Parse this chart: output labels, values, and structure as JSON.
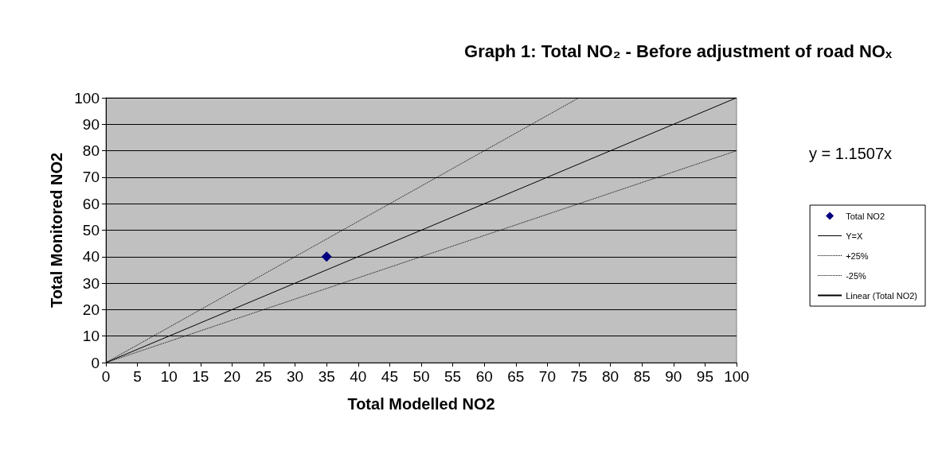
{
  "chart_data": {
    "type": "scatter",
    "title": "Graph 1: Total NO₂ - Before adjustment of road NOₓ",
    "xlabel": "Total Modelled NO2",
    "ylabel": "Total Monitored NO2",
    "annotations": [
      "y = 1.1507x"
    ],
    "xlim": [
      0,
      100
    ],
    "xticks": [
      0,
      5,
      10,
      15,
      20,
      25,
      30,
      35,
      40,
      45,
      50,
      55,
      60,
      65,
      70,
      75,
      80,
      85,
      90,
      95,
      100
    ],
    "ylim": [
      0,
      100
    ],
    "yticks": [
      0,
      10,
      20,
      30,
      40,
      50,
      60,
      70,
      80,
      90,
      100
    ],
    "grid": "y",
    "legend": "right",
    "series": [
      {
        "name": "Total NO2",
        "color": "#000080",
        "marker": "diamond",
        "x": [
          35
        ],
        "values": [
          40
        ]
      },
      {
        "name": "Y=X",
        "type": "line",
        "color": "#000000",
        "line_style": "solid",
        "x": [
          0,
          100
        ],
        "values": [
          0,
          100
        ]
      },
      {
        "name": "+25%",
        "type": "line",
        "color": "#000000",
        "line_style": "dotted",
        "x": [
          0,
          75
        ],
        "values": [
          0,
          100
        ]
      },
      {
        "name": "-25%",
        "type": "line",
        "color": "#000000",
        "line_style": "dotted",
        "x": [
          0,
          100
        ],
        "values": [
          0,
          80
        ]
      },
      {
        "name": "Linear (Total NO2)",
        "type": "line",
        "color": "#000000",
        "line_style": "solid"
      }
    ]
  }
}
